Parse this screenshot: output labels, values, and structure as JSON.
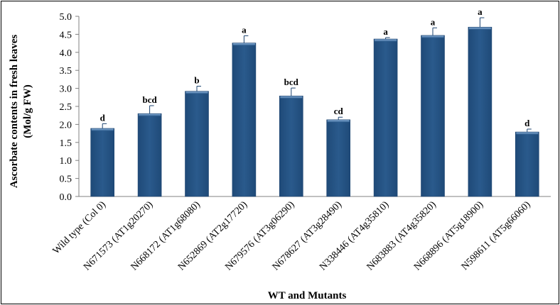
{
  "chart_data": {
    "type": "bar",
    "title": "",
    "xlabel": "WT and Mutants",
    "ylabel_lines": [
      "Ascorbate contents in fresh leaves",
      "(Mol/g FW)"
    ],
    "ylim": [
      0,
      5.0
    ],
    "yticks": [
      "0.0",
      "0.5",
      "1.0",
      "1.5",
      "2.0",
      "2.5",
      "3.0",
      "3.5",
      "4.0",
      "4.5",
      "5.0"
    ],
    "grid": false,
    "legend": "none",
    "bar_color": "#2a5a8c",
    "categories": [
      "Wild type (Col 0)",
      "N671573 (AT1g20270)",
      "N668172 (AT1g68080)",
      "N652869 (AT2g17720)",
      "N679576 (AT3g06290)",
      "N678627 (AT3g28490)",
      "N338446 (AT4g35810)",
      "N683883 (AT4g35820)",
      "N668896 (AT5g18900)",
      "N598611 (AT5g66060)"
    ],
    "values": [
      1.89,
      2.3,
      2.92,
      4.26,
      2.79,
      2.13,
      4.37,
      4.47,
      4.7,
      1.79
    ],
    "errors": [
      0.13,
      0.22,
      0.14,
      0.2,
      0.22,
      0.07,
      0.04,
      0.21,
      0.26,
      0.08
    ],
    "significance": [
      "d",
      "bcd",
      "b",
      "a",
      "bcd",
      "cd",
      "a",
      "a",
      "a",
      "d"
    ]
  }
}
